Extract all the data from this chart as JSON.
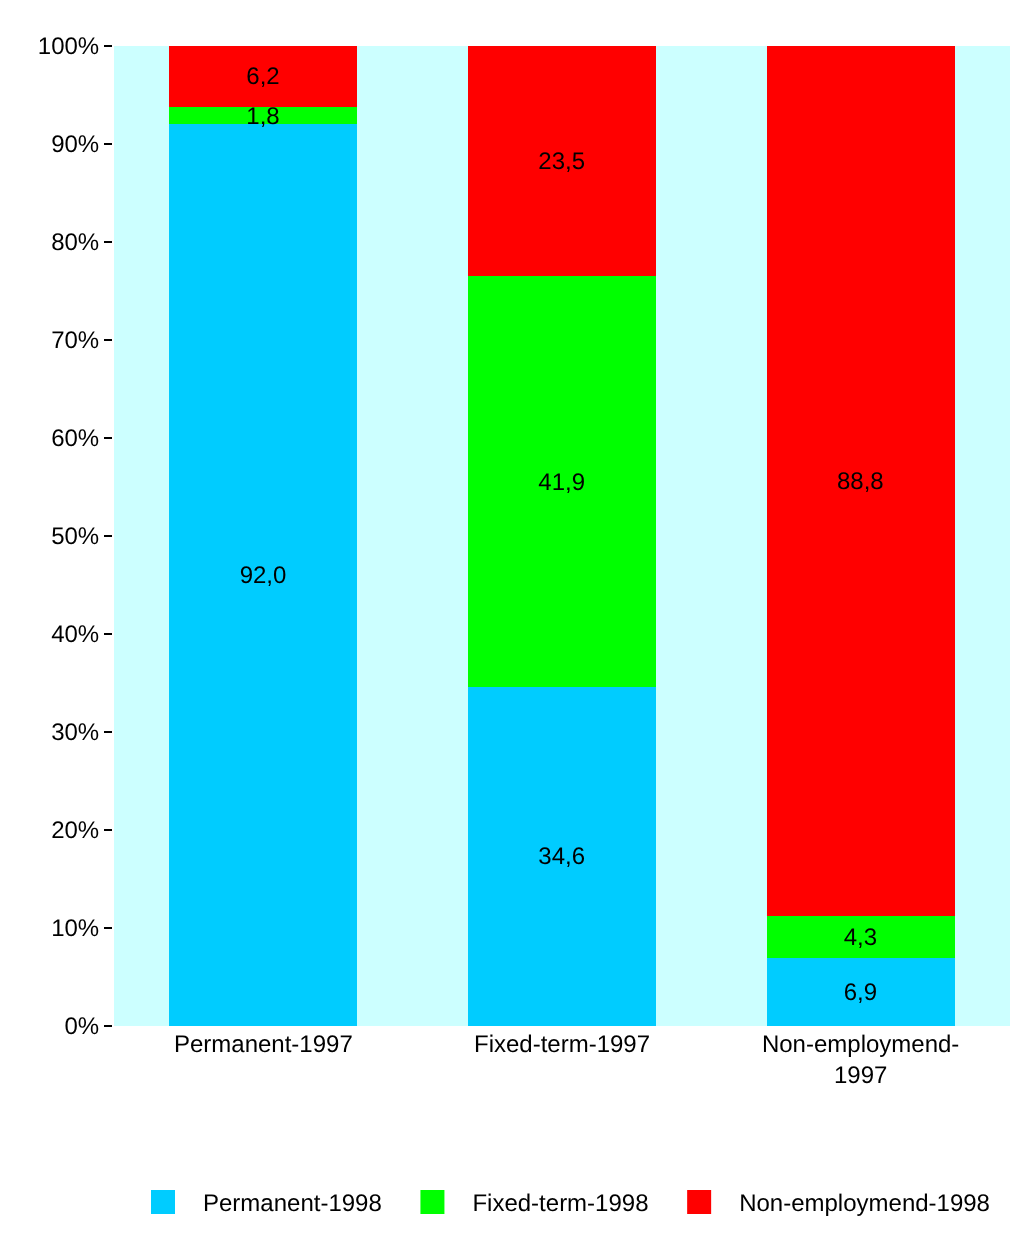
{
  "chart_data": {
    "type": "bar",
    "stacked": true,
    "categories": [
      "Permanent-1997",
      "Fixed-term-1997",
      "Non-employmend-1997"
    ],
    "series": [
      {
        "name": "Permanent-1998",
        "color": "#00ccff",
        "values": [
          92.0,
          34.6,
          6.9
        ],
        "value_labels": [
          "92,0",
          "34,6",
          "6,9"
        ]
      },
      {
        "name": "Fixed-term-1998",
        "color": "#00ff00",
        "values": [
          1.8,
          41.9,
          4.3
        ],
        "value_labels": [
          "1,8",
          "41,9",
          "4,3"
        ]
      },
      {
        "name": "Non-employmend-1998",
        "color": "#ff0000",
        "values": [
          6.2,
          23.5,
          88.8
        ],
        "value_labels": [
          "6,2",
          "23,5",
          "88,8"
        ]
      }
    ],
    "ylim": [
      0,
      100
    ],
    "yticks": [
      {
        "value": 0,
        "label": "0%"
      },
      {
        "value": 10,
        "label": "10%"
      },
      {
        "value": 20,
        "label": "20%"
      },
      {
        "value": 30,
        "label": "30%"
      },
      {
        "value": 40,
        "label": "40%"
      },
      {
        "value": 50,
        "label": "50%"
      },
      {
        "value": 60,
        "label": "60%"
      },
      {
        "value": 70,
        "label": "70%"
      },
      {
        "value": 80,
        "label": "80%"
      },
      {
        "value": 90,
        "label": "90%"
      },
      {
        "value": 100,
        "label": "100%"
      }
    ],
    "grid": false,
    "legend": "bottom"
  }
}
